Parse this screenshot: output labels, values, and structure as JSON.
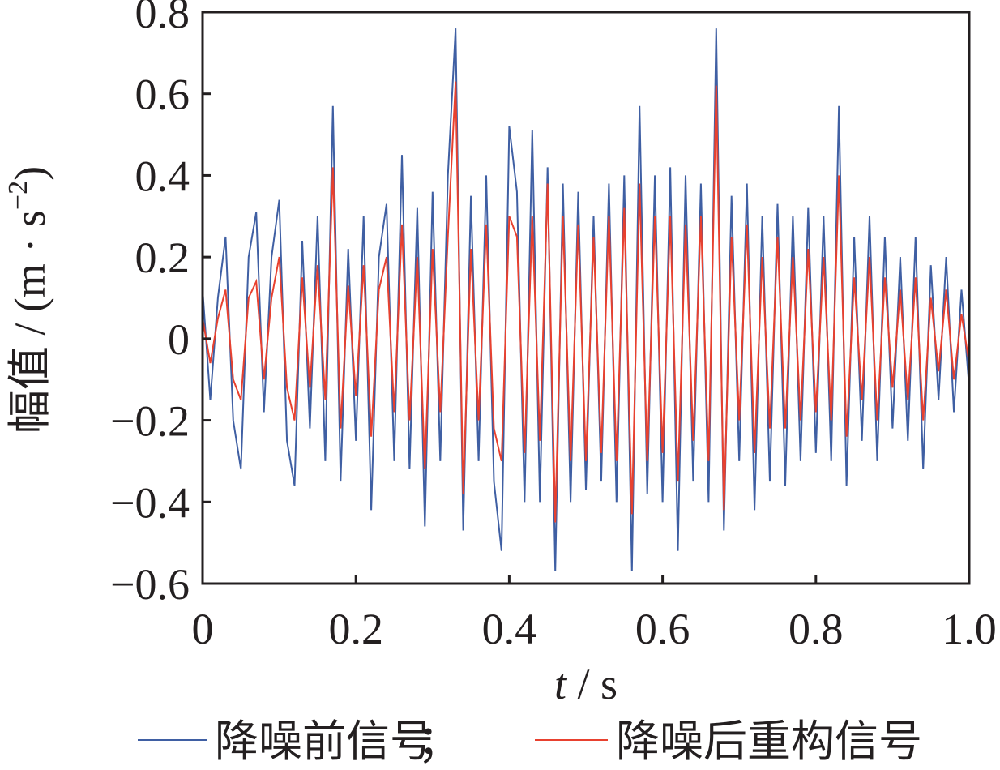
{
  "chart_data": {
    "type": "line",
    "xlabel": {
      "italic": "t",
      "rest": " / s"
    },
    "ylabel": {
      "text": "幅值 / (m · s",
      "sup": "−2",
      "end": ")"
    },
    "xlim": [
      0,
      1.0
    ],
    "ylim": [
      -0.6,
      0.8
    ],
    "xticks": [
      0,
      0.2,
      0.4,
      0.6,
      0.8,
      {
        "value": 1.0,
        "label": "1.0"
      }
    ],
    "yticks": [
      {
        "value": -0.6,
        "label": "−0.6"
      },
      {
        "value": -0.4,
        "label": "−0.4"
      },
      {
        "value": -0.2,
        "label": "−0.2"
      },
      0,
      0.2,
      0.4,
      0.6,
      0.8
    ],
    "legend_separator": "；",
    "x": [
      0,
      0.01,
      0.02,
      0.03,
      0.04,
      0.05,
      0.06,
      0.07,
      0.08,
      0.09,
      0.1,
      0.11,
      0.12,
      0.13,
      0.14,
      0.15,
      0.16,
      0.17,
      0.18,
      0.19,
      0.2,
      0.21,
      0.22,
      0.23,
      0.24,
      0.25,
      0.26,
      0.27,
      0.28,
      0.29,
      0.3,
      0.31,
      0.32,
      0.33,
      0.34,
      0.35,
      0.36,
      0.37,
      0.38,
      0.39,
      0.4,
      0.41,
      0.42,
      0.43,
      0.44,
      0.45,
      0.46,
      0.47,
      0.48,
      0.49,
      0.5,
      0.51,
      0.52,
      0.53,
      0.54,
      0.55,
      0.56,
      0.57,
      0.58,
      0.59,
      0.6,
      0.61,
      0.62,
      0.63,
      0.64,
      0.65,
      0.66,
      0.67,
      0.68,
      0.69,
      0.7,
      0.71,
      0.72,
      0.73,
      0.74,
      0.75,
      0.76,
      0.77,
      0.78,
      0.79,
      0.8,
      0.81,
      0.82,
      0.83,
      0.84,
      0.85,
      0.86,
      0.87,
      0.88,
      0.89,
      0.9,
      0.91,
      0.92,
      0.93,
      0.94,
      0.95,
      0.96,
      0.97,
      0.98,
      0.99,
      1.0
    ],
    "series": [
      {
        "name": "降噪前信号",
        "color": "#3f5fa3",
        "values": [
          0.12,
          -0.15,
          0.1,
          0.25,
          -0.2,
          -0.32,
          0.2,
          0.31,
          -0.18,
          0.2,
          0.34,
          -0.25,
          -0.36,
          0.24,
          -0.22,
          0.3,
          -0.3,
          0.57,
          -0.35,
          0.22,
          -0.25,
          0.3,
          -0.42,
          0.2,
          0.33,
          -0.3,
          0.45,
          -0.32,
          0.32,
          -0.46,
          0.36,
          -0.3,
          0.4,
          0.76,
          -0.47,
          0.35,
          -0.3,
          0.4,
          -0.35,
          -0.52,
          0.52,
          0.36,
          -0.4,
          0.51,
          -0.4,
          0.42,
          -0.57,
          0.38,
          -0.4,
          0.36,
          -0.37,
          0.3,
          -0.35,
          0.38,
          -0.4,
          0.4,
          -0.57,
          0.57,
          -0.38,
          0.4,
          -0.4,
          0.42,
          -0.52,
          0.4,
          -0.35,
          0.38,
          -0.4,
          0.76,
          -0.47,
          0.35,
          -0.3,
          0.38,
          -0.42,
          0.3,
          -0.35,
          0.33,
          -0.36,
          0.3,
          -0.3,
          0.32,
          -0.28,
          0.3,
          -0.3,
          0.57,
          -0.36,
          0.25,
          -0.25,
          0.3,
          -0.3,
          0.25,
          -0.22,
          0.2,
          -0.25,
          0.25,
          -0.32,
          0.18,
          -0.15,
          0.2,
          -0.18,
          0.12,
          -0.12
        ]
      },
      {
        "name": "降噪后重构信号",
        "color": "#e8412f",
        "values": [
          0.05,
          -0.06,
          0.05,
          0.12,
          -0.1,
          -0.15,
          0.1,
          0.14,
          -0.1,
          0.1,
          0.2,
          -0.12,
          -0.2,
          0.15,
          -0.12,
          0.18,
          -0.15,
          0.42,
          -0.22,
          0.13,
          -0.14,
          0.18,
          -0.24,
          0.12,
          0.2,
          -0.18,
          0.28,
          -0.2,
          0.2,
          -0.32,
          0.22,
          -0.18,
          0.25,
          0.63,
          -0.38,
          0.22,
          -0.2,
          0.28,
          -0.22,
          -0.3,
          0.3,
          0.25,
          -0.28,
          0.3,
          -0.25,
          0.38,
          -0.45,
          0.3,
          -0.3,
          0.28,
          -0.3,
          0.25,
          -0.28,
          0.3,
          -0.3,
          0.32,
          -0.43,
          0.38,
          -0.3,
          0.3,
          -0.28,
          0.3,
          -0.35,
          0.28,
          -0.25,
          0.3,
          -0.3,
          0.62,
          -0.42,
          0.25,
          -0.2,
          0.28,
          -0.28,
          0.2,
          -0.22,
          0.25,
          -0.22,
          0.2,
          -0.2,
          0.22,
          -0.18,
          0.2,
          -0.2,
          0.4,
          -0.24,
          0.15,
          -0.15,
          0.2,
          -0.2,
          0.15,
          -0.12,
          0.12,
          -0.15,
          0.15,
          -0.2,
          0.1,
          -0.08,
          0.12,
          -0.1,
          0.06,
          -0.06
        ]
      }
    ]
  }
}
